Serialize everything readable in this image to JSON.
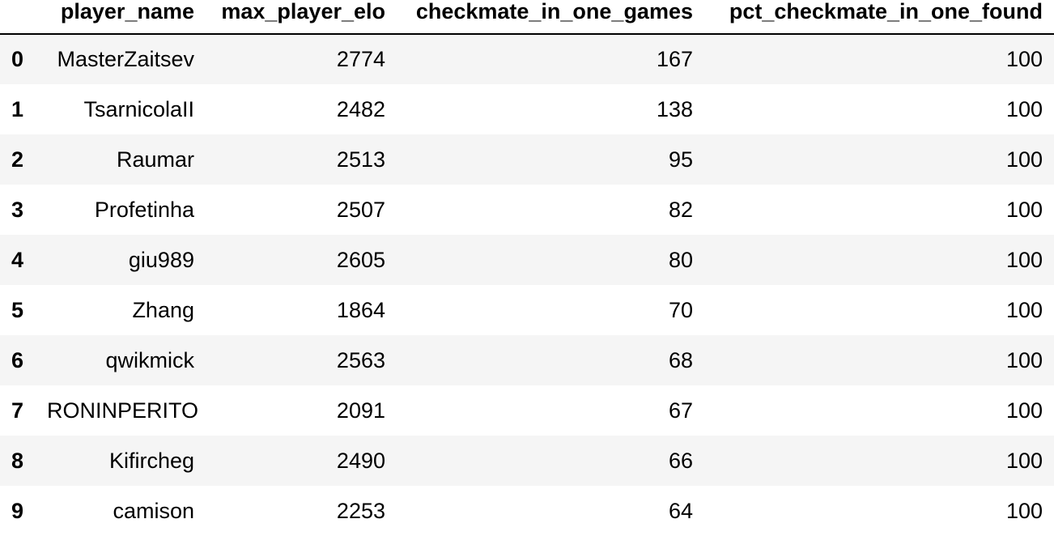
{
  "table": {
    "columns": [
      "",
      "player_name",
      "max_player_elo",
      "checkmate_in_one_games",
      "pct_checkmate_in_one_found"
    ],
    "rows": [
      {
        "index": "0",
        "player_name": "MasterZaitsev",
        "max_player_elo": "2774",
        "checkmate_in_one_games": "167",
        "pct_checkmate_in_one_found": "100"
      },
      {
        "index": "1",
        "player_name": "TsarnicolaII",
        "max_player_elo": "2482",
        "checkmate_in_one_games": "138",
        "pct_checkmate_in_one_found": "100"
      },
      {
        "index": "2",
        "player_name": "Raumar",
        "max_player_elo": "2513",
        "checkmate_in_one_games": "95",
        "pct_checkmate_in_one_found": "100"
      },
      {
        "index": "3",
        "player_name": "Profetinha",
        "max_player_elo": "2507",
        "checkmate_in_one_games": "82",
        "pct_checkmate_in_one_found": "100"
      },
      {
        "index": "4",
        "player_name": "giu989",
        "max_player_elo": "2605",
        "checkmate_in_one_games": "80",
        "pct_checkmate_in_one_found": "100"
      },
      {
        "index": "5",
        "player_name": "Zhang",
        "max_player_elo": "1864",
        "checkmate_in_one_games": "70",
        "pct_checkmate_in_one_found": "100"
      },
      {
        "index": "6",
        "player_name": "qwikmick",
        "max_player_elo": "2563",
        "checkmate_in_one_games": "68",
        "pct_checkmate_in_one_found": "100"
      },
      {
        "index": "7",
        "player_name": "RONINPERITO",
        "max_player_elo": "2091",
        "checkmate_in_one_games": "67",
        "pct_checkmate_in_one_found": "100"
      },
      {
        "index": "8",
        "player_name": "Kifircheg",
        "max_player_elo": "2490",
        "checkmate_in_one_games": "66",
        "pct_checkmate_in_one_found": "100"
      },
      {
        "index": "9",
        "player_name": "camison",
        "max_player_elo": "2253",
        "checkmate_in_one_games": "64",
        "pct_checkmate_in_one_found": "100"
      }
    ]
  }
}
